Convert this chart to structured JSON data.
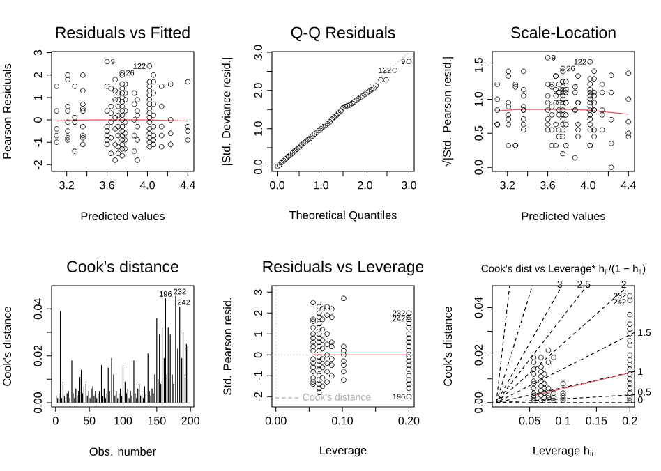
{
  "chart_data": [
    {
      "type": "scatter",
      "title": "Residuals vs Fitted",
      "xlabel": "Predicted values",
      "ylabel": "Pearson Residuals",
      "xlim": [
        3.05,
        4.46
      ],
      "ylim": [
        -2.3,
        3.05
      ],
      "xticks": [
        3.2,
        {
          "value": 3.4,
          "label": null
        },
        3.6,
        {
          "value": 3.8,
          "label": null
        },
        {
          "value": 4.0,
          "label": "4.0"
        },
        {
          "value": 4.2,
          "label": null
        },
        4.4
      ],
      "yticks": [
        -2,
        -1,
        0,
        1,
        2,
        3
      ],
      "ref_lines": [
        {
          "axis": "y",
          "value": 0,
          "color": "#bebebe",
          "line_style": "dotted"
        }
      ],
      "series": [
        {
          "color": "#000000",
          "marker": "circle",
          "x": [
            3.1,
            3.1,
            3.1,
            3.1,
            3.1,
            3.21,
            3.21,
            3.21,
            3.21,
            3.21,
            3.21,
            3.21,
            3.21,
            3.28,
            3.28,
            3.28,
            3.28,
            3.36,
            3.36,
            3.36,
            3.36,
            3.36,
            3.36,
            3.36,
            3.36,
            3.36,
            3.6,
            3.6,
            3.6,
            3.6,
            3.6,
            3.6,
            3.6,
            3.6,
            3.64,
            3.64,
            3.64,
            3.64,
            3.64,
            3.64,
            3.68,
            3.68,
            3.68,
            3.68,
            3.68,
            3.68,
            3.68,
            3.71,
            3.71,
            3.71,
            3.71,
            3.71,
            3.71,
            3.71,
            3.71,
            3.75,
            3.75,
            3.75,
            3.75,
            3.75,
            3.75,
            3.75,
            3.75,
            3.75,
            3.75,
            3.75,
            3.75,
            3.75,
            3.75,
            3.75,
            3.75,
            3.75,
            3.75,
            3.78,
            3.78,
            3.78,
            3.78,
            3.78,
            3.78,
            3.78,
            3.78,
            3.87,
            3.87,
            3.87,
            3.87,
            3.87,
            3.9,
            3.9,
            3.9,
            3.9,
            3.9,
            3.9,
            4.02,
            4.02,
            4.02,
            4.02,
            4.02,
            4.02,
            4.02,
            4.02,
            4.02,
            4.02,
            4.02,
            4.02,
            4.02,
            4.02,
            4.02,
            4.02,
            4.06,
            4.06,
            4.06,
            4.06,
            4.06,
            4.06,
            4.06,
            4.06,
            4.06,
            4.14,
            4.14,
            4.14,
            4.14,
            4.14,
            4.23,
            4.23,
            4.23,
            4.23,
            4.4,
            4.4,
            4.4,
            4.4
          ],
          "values": [
            1.5,
            0.4,
            -0.4,
            -0.7,
            -1.0,
            2.0,
            1.8,
            0.6,
            0.4,
            -0.1,
            -0.5,
            -0.8,
            -0.9,
            1.5,
            0.1,
            -0.1,
            -1.4,
            2.0,
            1.3,
            0.7,
            0.5,
            0.4,
            -0.3,
            -0.7,
            -0.8,
            -1.1,
            2.6,
            1.5,
            0.4,
            -0.3,
            -0.5,
            -0.7,
            -0.9,
            -1.1,
            1.4,
            0.6,
            0.3,
            -0.1,
            -0.8,
            -1.5,
            1.8,
            1.3,
            0.9,
            0.1,
            -0.4,
            -1.1,
            -1.8,
            1.2,
            0.9,
            0.6,
            0.2,
            -0.3,
            -0.7,
            -1.2,
            -1.5,
            2.1,
            2.0,
            1.6,
            1.4,
            1.2,
            1.0,
            0.8,
            0.6,
            0.4,
            0.2,
            0.0,
            -0.3,
            -0.5,
            -0.7,
            -0.9,
            -1.1,
            -1.3,
            -1.6,
            1.6,
            1.2,
            0.9,
            0.4,
            -0.1,
            -0.6,
            -0.9,
            -1.3,
            1.2,
            0.7,
            0.0,
            -0.7,
            -1.4,
            0.9,
            0.4,
            0.2,
            -0.3,
            -0.9,
            -1.8,
            2.4,
            1.7,
            1.5,
            1.3,
            1.1,
            0.9,
            0.7,
            0.5,
            0.3,
            0.1,
            -0.1,
            -0.4,
            -0.6,
            -0.8,
            -1.0,
            -1.2,
            2.0,
            1.7,
            1.2,
            0.7,
            0.2,
            -0.3,
            -0.7,
            -0.9,
            -1.1,
            1.5,
            0.6,
            -0.3,
            -0.7,
            -1.2,
            1.6,
            0.0,
            -0.6,
            -1.1,
            1.7,
            -0.3,
            -0.5,
            -0.9
          ]
        },
        {
          "type": "line",
          "color": "#df536b",
          "x": [
            3.1,
            3.4,
            3.75,
            4.0,
            4.4
          ],
          "values": [
            -0.05,
            0.0,
            0.0,
            0.0,
            -0.05
          ]
        }
      ],
      "annotations": [
        {
          "text": "9",
          "x": 3.6,
          "y": 2.6
        },
        {
          "text": "26",
          "x": 3.75,
          "y": 2.1
        },
        {
          "text": "122",
          "x": 4.02,
          "y": 2.4
        }
      ]
    },
    {
      "type": "scatter",
      "title": "Q-Q Residuals",
      "xlabel": "Theoretical Quantiles",
      "ylabel": "|Std. Deviance resid.|",
      "xlim": [
        -0.12,
        3.12
      ],
      "ylim": [
        -0.12,
        3.02
      ],
      "xticks": [
        {
          "value": 0,
          "label": "0.0"
        },
        {
          "value": 0.5,
          "label": null
        },
        {
          "value": 1,
          "label": "1.0"
        },
        {
          "value": 1.5,
          "label": null
        },
        {
          "value": 2,
          "label": "2.0"
        },
        {
          "value": 2.5,
          "label": null
        },
        {
          "value": 3,
          "label": "3.0"
        }
      ],
      "yticks": [
        {
          "value": 0,
          "label": "0.0"
        },
        {
          "value": 0.5,
          "label": null
        },
        {
          "value": 1,
          "label": "1.0"
        },
        {
          "value": 1.5,
          "label": null
        },
        {
          "value": 2,
          "label": "2.0"
        },
        {
          "value": 2.5,
          "label": null
        },
        {
          "value": 3,
          "label": "3.0"
        }
      ],
      "series": [
        {
          "color": "#000000",
          "marker": "circle",
          "x": [
            0.01,
            0.05,
            0.1,
            0.15,
            0.2,
            0.25,
            0.3,
            0.35,
            0.4,
            0.45,
            0.5,
            0.55,
            0.6,
            0.65,
            0.7,
            0.75,
            0.8,
            0.85,
            0.9,
            0.95,
            1.0,
            1.05,
            1.1,
            1.15,
            1.2,
            1.25,
            1.3,
            1.35,
            1.4,
            1.45,
            1.5,
            1.55,
            1.6,
            1.65,
            1.7,
            1.75,
            1.8,
            1.85,
            1.9,
            1.95,
            2.0,
            2.05,
            2.1,
            2.15,
            2.2,
            2.25,
            2.36,
            2.48,
            2.68,
            3.0
          ],
          "values": [
            0.01,
            0.05,
            0.11,
            0.16,
            0.21,
            0.27,
            0.31,
            0.36,
            0.42,
            0.46,
            0.5,
            0.57,
            0.62,
            0.66,
            0.71,
            0.75,
            0.8,
            0.86,
            0.9,
            0.95,
            1.0,
            1.05,
            1.09,
            1.13,
            1.18,
            1.25,
            1.3,
            1.35,
            1.41,
            1.46,
            1.55,
            1.58,
            1.6,
            1.62,
            1.66,
            1.7,
            1.74,
            1.78,
            1.82,
            1.86,
            1.9,
            1.94,
            1.98,
            2.02,
            2.06,
            2.12,
            2.28,
            2.28,
            2.53,
            2.76
          ]
        },
        {
          "type": "line",
          "color": "#bebebe",
          "line_style": "dotted",
          "x": [
            -0.1,
            3.0
          ],
          "values": [
            -0.1,
            3.0
          ]
        }
      ],
      "annotations": [
        {
          "text": "122",
          "x": 2.68,
          "y": 2.53
        },
        {
          "text": "9",
          "x": 3.0,
          "y": 2.76
        }
      ]
    },
    {
      "type": "scatter",
      "title": "Scale-Location",
      "xlabel": "Predicted values",
      "ylabel": "√|Std. Pearson resid.|",
      "xlim": [
        3.05,
        4.46
      ],
      "ylim": [
        -0.06,
        1.7
      ],
      "xticks": [
        3.2,
        {
          "value": 3.4,
          "label": null
        },
        3.6,
        {
          "value": 3.8,
          "label": null
        },
        {
          "value": 4.0,
          "label": "4.0"
        },
        {
          "value": 4.2,
          "label": null
        },
        4.4
      ],
      "yticks": [
        {
          "value": 0,
          "label": "0.0"
        },
        0.5,
        {
          "value": 1,
          "label": "1.0"
        },
        1.5
      ],
      "series": [
        {
          "color": "#000000",
          "marker": "circle",
          "x": [
            3.1,
            3.1,
            3.1,
            3.1,
            3.1,
            3.21,
            3.21,
            3.21,
            3.21,
            3.21,
            3.21,
            3.21,
            3.21,
            3.28,
            3.28,
            3.28,
            3.28,
            3.36,
            3.36,
            3.36,
            3.36,
            3.36,
            3.36,
            3.36,
            3.36,
            3.36,
            3.6,
            3.6,
            3.6,
            3.6,
            3.6,
            3.6,
            3.6,
            3.6,
            3.64,
            3.64,
            3.64,
            3.64,
            3.64,
            3.64,
            3.68,
            3.68,
            3.68,
            3.68,
            3.68,
            3.68,
            3.68,
            3.71,
            3.71,
            3.71,
            3.71,
            3.71,
            3.71,
            3.71,
            3.71,
            3.75,
            3.75,
            3.75,
            3.75,
            3.75,
            3.75,
            3.75,
            3.75,
            3.75,
            3.75,
            3.75,
            3.75,
            3.75,
            3.75,
            3.75,
            3.75,
            3.75,
            3.75,
            3.78,
            3.78,
            3.78,
            3.78,
            3.78,
            3.78,
            3.78,
            3.78,
            3.87,
            3.87,
            3.87,
            3.87,
            3.87,
            3.9,
            3.9,
            3.9,
            3.9,
            3.9,
            3.9,
            4.02,
            4.02,
            4.02,
            4.02,
            4.02,
            4.02,
            4.02,
            4.02,
            4.02,
            4.02,
            4.02,
            4.02,
            4.02,
            4.02,
            4.02,
            4.02,
            4.06,
            4.06,
            4.06,
            4.06,
            4.06,
            4.06,
            4.06,
            4.06,
            4.06,
            4.14,
            4.14,
            4.14,
            4.14,
            4.14,
            4.23,
            4.23,
            4.23,
            4.23,
            4.23,
            4.4,
            4.4,
            4.4,
            4.4,
            4.4
          ],
          "values": [
            1.22,
            0.63,
            0.63,
            0.84,
            1.0,
            1.41,
            1.34,
            0.77,
            0.63,
            0.32,
            0.71,
            0.89,
            0.95,
            1.22,
            0.32,
            0.32,
            1.18,
            1.41,
            1.14,
            0.84,
            0.71,
            0.63,
            0.55,
            0.84,
            0.89,
            1.05,
            1.61,
            1.22,
            0.63,
            0.55,
            0.71,
            0.84,
            0.95,
            1.05,
            1.18,
            0.77,
            0.55,
            0.32,
            0.89,
            1.22,
            1.34,
            1.14,
            0.95,
            0.32,
            0.63,
            1.05,
            1.34,
            1.1,
            0.95,
            0.77,
            0.45,
            0.55,
            0.84,
            1.1,
            1.22,
            1.45,
            1.41,
            1.26,
            1.18,
            1.1,
            1.0,
            0.89,
            0.77,
            0.63,
            0.45,
            0.2,
            0.55,
            0.71,
            0.84,
            0.95,
            1.05,
            1.14,
            1.26,
            1.26,
            1.1,
            0.95,
            0.63,
            0.32,
            0.77,
            0.95,
            1.14,
            1.1,
            0.84,
            0.14,
            0.84,
            1.18,
            0.95,
            0.63,
            0.45,
            0.55,
            0.95,
            1.34,
            1.55,
            1.3,
            1.22,
            1.14,
            1.05,
            0.95,
            0.84,
            0.71,
            0.55,
            0.32,
            0.32,
            0.63,
            0.77,
            0.89,
            1.0,
            1.1,
            1.41,
            1.3,
            1.1,
            0.84,
            0.45,
            0.55,
            0.84,
            0.95,
            1.05,
            1.22,
            0.77,
            0.55,
            0.84,
            1.1,
            1.35,
            1.1,
            0.7,
            0.35,
            0.0,
            1.38,
            1.0,
            0.67,
            0.5,
            0.45
          ]
        },
        {
          "type": "line",
          "color": "#df536b",
          "x": [
            3.1,
            3.3,
            3.6,
            3.8,
            4.0,
            4.2,
            4.4
          ],
          "values": [
            0.83,
            0.85,
            0.85,
            0.85,
            0.84,
            0.81,
            0.78
          ]
        }
      ],
      "annotations": [
        {
          "text": "9",
          "x": 3.6,
          "y": 1.61
        },
        {
          "text": "26",
          "x": 3.75,
          "y": 1.45
        },
        {
          "text": "122",
          "x": 4.02,
          "y": 1.55
        }
      ]
    },
    {
      "type": "bar",
      "title": "Cook's distance",
      "xlabel": "Obs. number",
      "ylabel": "Cook's distance",
      "xlim": [
        -6,
        205
      ],
      "ylim": [
        -0.0018,
        0.0499
      ],
      "xticks": [
        0,
        50,
        100,
        150,
        200
      ],
      "yticks": [
        {
          "value": 0,
          "label": "0.00"
        },
        {
          "value": 0.01,
          "label": null
        },
        {
          "value": 0.02,
          "label": "0.02"
        },
        {
          "value": 0.03,
          "label": null
        },
        {
          "value": 0.04,
          "label": "0.04"
        }
      ],
      "color": "#000000",
      "x": [
        1,
        3,
        5,
        7,
        9,
        11,
        13,
        15,
        17,
        19,
        21,
        24,
        26,
        28,
        30,
        32,
        34,
        36,
        38,
        40,
        42,
        45,
        47,
        49,
        51,
        53,
        55,
        57,
        59,
        61,
        63,
        65,
        68,
        70,
        72,
        74,
        76,
        78,
        80,
        83,
        86,
        88,
        90,
        92,
        94,
        96,
        98,
        100,
        103,
        105,
        107,
        109,
        111,
        113,
        116,
        118,
        120,
        122,
        124,
        126,
        128,
        130,
        132,
        134,
        137,
        139,
        141,
        143,
        145,
        147,
        150,
        152,
        154,
        156,
        158,
        161,
        163,
        165,
        167,
        170,
        173,
        175,
        178,
        181,
        184,
        187,
        189,
        192,
        194,
        196
      ],
      "values": [
        0.003,
        0.002,
        0.004,
        0.039,
        0.002,
        0.009,
        0.003,
        0.001,
        0.004,
        0.005,
        0.002,
        0.018,
        0.004,
        0.002,
        0.006,
        0.003,
        0.005,
        0.011,
        0.014,
        0.004,
        0.007,
        0.008,
        0.003,
        0.005,
        0.002,
        0.006,
        0.007,
        0.003,
        0.005,
        0.002,
        0.004,
        0.005,
        0.016,
        0.003,
        0.006,
        0.002,
        0.004,
        0.015,
        0.005,
        0.019,
        0.012,
        0.003,
        0.005,
        0.002,
        0.004,
        0.006,
        0.003,
        0.016,
        0.009,
        0.004,
        0.006,
        0.002,
        0.005,
        0.003,
        0.018,
        0.004,
        0.002,
        0.006,
        0.008,
        0.003,
        0.005,
        0.002,
        0.007,
        0.004,
        0.021,
        0.005,
        0.003,
        0.006,
        0.004,
        0.012,
        0.036,
        0.01,
        0.029,
        0.008,
        0.032,
        0.019,
        0.0445,
        0.012,
        0.032,
        0.029,
        0.012,
        0.008,
        0.0455,
        0.023,
        0.041,
        0.019,
        0.03,
        0.012,
        0.025,
        0.024
      ],
      "annotations": [
        {
          "text": "196",
          "x": 163,
          "y": 0.0445
        },
        {
          "text": "232",
          "x": 178,
          "y": 0.0455
        },
        {
          "text": "242",
          "x": 184,
          "y": 0.041
        }
      ]
    },
    {
      "type": "scatter",
      "title": "Residuals vs Leverage",
      "xlabel": "Leverage",
      "ylabel": "Std. Pearson resid.",
      "xlim": [
        -0.006,
        0.208
      ],
      "ylim": [
        -2.49,
        3.31
      ],
      "xticks": [
        {
          "value": 0,
          "label": "0.00"
        },
        {
          "value": 0.05,
          "label": null
        },
        {
          "value": 0.1,
          "label": "0.10"
        },
        {
          "value": 0.15,
          "label": null
        },
        {
          "value": 0.2,
          "label": "0.20"
        }
      ],
      "yticks": [
        -2,
        -1,
        0,
        1,
        2,
        3
      ],
      "legend": "bottom left",
      "ref_lines": [
        {
          "axis": "x",
          "value": 0,
          "color": "#bebebe",
          "line_style": "dotted"
        },
        {
          "axis": "y",
          "value": 0,
          "color": "#bebebe",
          "line_style": "dotted"
        }
      ],
      "series": [
        {
          "color": "#000000",
          "marker": "circle",
          "x": [
            0.056,
            0.056,
            0.056,
            0.056,
            0.056,
            0.056,
            0.056,
            0.056,
            0.056,
            0.056,
            0.056,
            0.056,
            0.056,
            0.056,
            0.056,
            0.056,
            0.065,
            0.065,
            0.065,
            0.065,
            0.065,
            0.065,
            0.065,
            0.065,
            0.065,
            0.065,
            0.065,
            0.065,
            0.065,
            0.065,
            0.065,
            0.065,
            0.065,
            0.065,
            0.065,
            0.07,
            0.07,
            0.07,
            0.07,
            0.07,
            0.07,
            0.07,
            0.07,
            0.07,
            0.077,
            0.077,
            0.077,
            0.077,
            0.077,
            0.077,
            0.077,
            0.077,
            0.084,
            0.084,
            0.084,
            0.084,
            0.084,
            0.084,
            0.084,
            0.102,
            0.102,
            0.102,
            0.102,
            0.102,
            0.102,
            0.102,
            0.102,
            0.2,
            0.2,
            0.2,
            0.2,
            0.2,
            0.2,
            0.2,
            0.2,
            0.2,
            0.2,
            0.2,
            0.2,
            0.2,
            0.2,
            0.2,
            0.2,
            0.2,
            0.2,
            0.2,
            0.2
          ],
          "values": [
            2.5,
            1.7,
            1.6,
            1.3,
            1.0,
            0.8,
            0.6,
            0.4,
            0.2,
            -0.2,
            -0.4,
            -0.6,
            -0.8,
            -1.1,
            -1.3,
            -1.4,
            2.3,
            2.0,
            1.8,
            1.5,
            1.3,
            1.0,
            0.8,
            0.6,
            0.4,
            0.2,
            -0.1,
            -0.3,
            -0.5,
            -0.7,
            -1.0,
            -1.2,
            -1.4,
            -1.6,
            -1.8,
            2.2,
            1.7,
            1.2,
            0.7,
            0.3,
            -0.2,
            -0.6,
            -1.1,
            -1.5,
            2.3,
            1.9,
            1.0,
            0.5,
            0.0,
            -0.4,
            -0.8,
            -1.3,
            2.2,
            1.8,
            0.6,
            0.4,
            -0.2,
            -0.5,
            -1.0,
            2.7,
            0.4,
            0.2,
            0.0,
            -0.3,
            -0.5,
            -0.8,
            -1.2,
            2.0,
            1.8,
            1.7,
            1.5,
            1.3,
            1.0,
            0.8,
            0.6,
            0.4,
            0.2,
            0.0,
            -0.1,
            -0.3,
            -0.5,
            -0.7,
            -1.0,
            -1.2,
            -1.4,
            -1.6,
            -2.0
          ]
        },
        {
          "type": "line",
          "color": "#df536b",
          "x": [
            0.056,
            0.1,
            0.2
          ],
          "values": [
            0.0,
            0.0,
            0.0
          ]
        },
        {
          "type": "line",
          "name": "Cook's distance",
          "color": "#a9a9a9",
          "line_style": "dashed"
        }
      ],
      "annotations": [
        {
          "text": "232",
          "x": 0.2,
          "y": 2.0
        },
        {
          "text": "242",
          "x": 0.2,
          "y": 1.8
        },
        {
          "text": "196",
          "x": 0.2,
          "y": -2.0
        }
      ]
    },
    {
      "type": "scatter",
      "title": "Cook's dist vs Leverage* h$_{ii}$/(1 − h$_{ii}$)",
      "xlabel": "Leverage h$_{ii}$",
      "ylabel": "Cook's distance",
      "xlim": [
        -0.006,
        0.207
      ],
      "ylim": [
        -0.0018,
        0.0492
      ],
      "xticks": [
        0.05,
        0.1,
        0.15,
        0.2
      ],
      "yticks": [
        {
          "value": 0,
          "label": "0.00"
        },
        {
          "value": 0.01,
          "label": null
        },
        {
          "value": 0.02,
          "label": "0.02"
        },
        {
          "value": 0.03,
          "label": null
        },
        {
          "value": 0.04,
          "label": "0.04"
        }
      ],
      "series": [
        {
          "color": "#000000",
          "marker": "circle",
          "x": [
            0.056,
            0.056,
            0.056,
            0.056,
            0.056,
            0.056,
            0.056,
            0.056,
            0.056,
            0.056,
            0.056,
            0.067,
            0.067,
            0.067,
            0.067,
            0.067,
            0.067,
            0.067,
            0.067,
            0.067,
            0.072,
            0.072,
            0.072,
            0.072,
            0.072,
            0.078,
            0.078,
            0.078,
            0.078,
            0.078,
            0.086,
            0.086,
            0.086,
            0.086,
            0.1,
            0.1,
            0.1,
            0.1,
            0.1,
            0.2,
            0.2,
            0.2,
            0.2,
            0.2,
            0.2,
            0.2,
            0.2,
            0.2,
            0.2,
            0.2,
            0.2,
            0.2,
            0.2,
            0.2,
            0.2,
            0.2,
            0.2,
            0.2
          ],
          "values": [
            0.019,
            0.017,
            0.014,
            0.012,
            0.009,
            0.008,
            0.006,
            0.004,
            0.003,
            0.002,
            0.001,
            0.019,
            0.015,
            0.013,
            0.011,
            0.009,
            0.007,
            0.005,
            0.003,
            0.001,
            0.012,
            0.008,
            0.006,
            0.004,
            0.002,
            0.022,
            0.017,
            0.006,
            0.003,
            0.002,
            0.019,
            0.004,
            0.002,
            0.001,
            0.008,
            0.004,
            0.003,
            0.002,
            0.001,
            0.045,
            0.043,
            0.037,
            0.033,
            0.031,
            0.029,
            0.026,
            0.024,
            0.02,
            0.018,
            0.016,
            0.014,
            0.012,
            0.01,
            0.008,
            0.006,
            0.004,
            0.002,
            0.001
          ]
        },
        {
          "type": "line",
          "name": "0",
          "color": "#000000",
          "line_style": "dashed",
          "x": [
            -0.006,
            0.207
          ],
          "values": [
            0,
            0
          ]
        },
        {
          "type": "line",
          "name": "0.5",
          "color": "#000000",
          "line_style": "dashed",
          "x": [
            0,
            0.207
          ],
          "values": [
            0,
            0.0033
          ]
        },
        {
          "type": "line",
          "name": "1",
          "color": "#000000",
          "line_style": "dashed",
          "x": [
            0,
            0.207
          ],
          "values": [
            0,
            0.0131
          ]
        },
        {
          "type": "line",
          "name": "1.5",
          "color": "#000000",
          "line_style": "dashed",
          "x": [
            0,
            0.207
          ],
          "values": [
            0,
            0.0295
          ]
        },
        {
          "type": "line",
          "name": "2",
          "color": "#000000",
          "line_style": "dashed",
          "x": [
            0,
            0.191
          ],
          "values": [
            0,
            0.0475
          ]
        },
        {
          "type": "line",
          "name": "2.5",
          "color": "#000000",
          "line_style": "dashed",
          "x": [
            0,
            0.131
          ],
          "values": [
            0,
            0.0475
          ]
        },
        {
          "type": "line",
          "name": "3",
          "color": "#000000",
          "line_style": "dashed",
          "x": [
            0,
            0.095
          ],
          "values": [
            0,
            0.0475
          ]
        },
        {
          "type": "line",
          "color": "#000000",
          "line_style": "dashed",
          "x": [
            0,
            0.054
          ],
          "values": [
            0,
            0.0492
          ]
        },
        {
          "type": "line",
          "color": "#000000",
          "line_style": "dashed",
          "x": [
            0,
            0.02
          ],
          "values": [
            0,
            0.0492
          ]
        },
        {
          "type": "line",
          "color": "#df536b",
          "x": [
            0.056,
            0.2
          ],
          "values": [
            0.003,
            0.0125
          ]
        }
      ],
      "annotations": [
        {
          "text": "232",
          "x": 0.2,
          "y": 0.045
        },
        {
          "text": "242",
          "x": 0.2,
          "y": 0.043
        }
      ]
    }
  ]
}
